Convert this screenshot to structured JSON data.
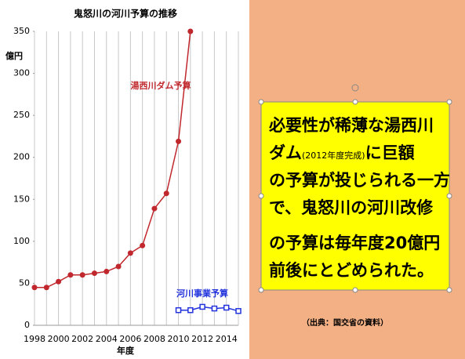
{
  "chart_data": {
    "type": "line",
    "title": "鬼怒川の河川予算の推移",
    "y_label": "億円",
    "x_label": "年度",
    "x": [
      1998,
      1999,
      2000,
      2001,
      2002,
      2003,
      2004,
      2005,
      2006,
      2007,
      2008,
      2009,
      2010,
      2011,
      2012,
      2013,
      2014,
      2015
    ],
    "series": [
      {
        "name": "湯西川ダム予算",
        "color": "#c0282d",
        "marker": "circle",
        "values": [
          45,
          45,
          52,
          60,
          60,
          62,
          64,
          70,
          86,
          95,
          139,
          157,
          219,
          350,
          null,
          null,
          null,
          null
        ]
      },
      {
        "name": "河川事業予算",
        "color": "#2233dd",
        "marker": "square",
        "values": [
          null,
          null,
          null,
          null,
          null,
          null,
          null,
          null,
          null,
          null,
          null,
          null,
          18,
          18,
          22,
          20,
          21,
          17
        ]
      }
    ],
    "xlim": [
      1998,
      2015
    ],
    "xticks": [
      1998,
      2000,
      2002,
      2004,
      2006,
      2008,
      2010,
      2012,
      2014
    ],
    "ylim": [
      0,
      350
    ],
    "yticks": [
      0,
      50,
      100,
      150,
      200,
      250,
      300,
      350
    ],
    "grid": true
  },
  "callout": {
    "lines": [
      "必要性が稀薄な湯西川",
      "ダム",
      "(2012年度完成)",
      "に巨額",
      "の予算が投じられる一方",
      "で、鬼怒川の河川改修",
      "の予算は毎年度20億円",
      "前後にとどめられた。"
    ]
  },
  "source": "（出典：国交省の資料）"
}
